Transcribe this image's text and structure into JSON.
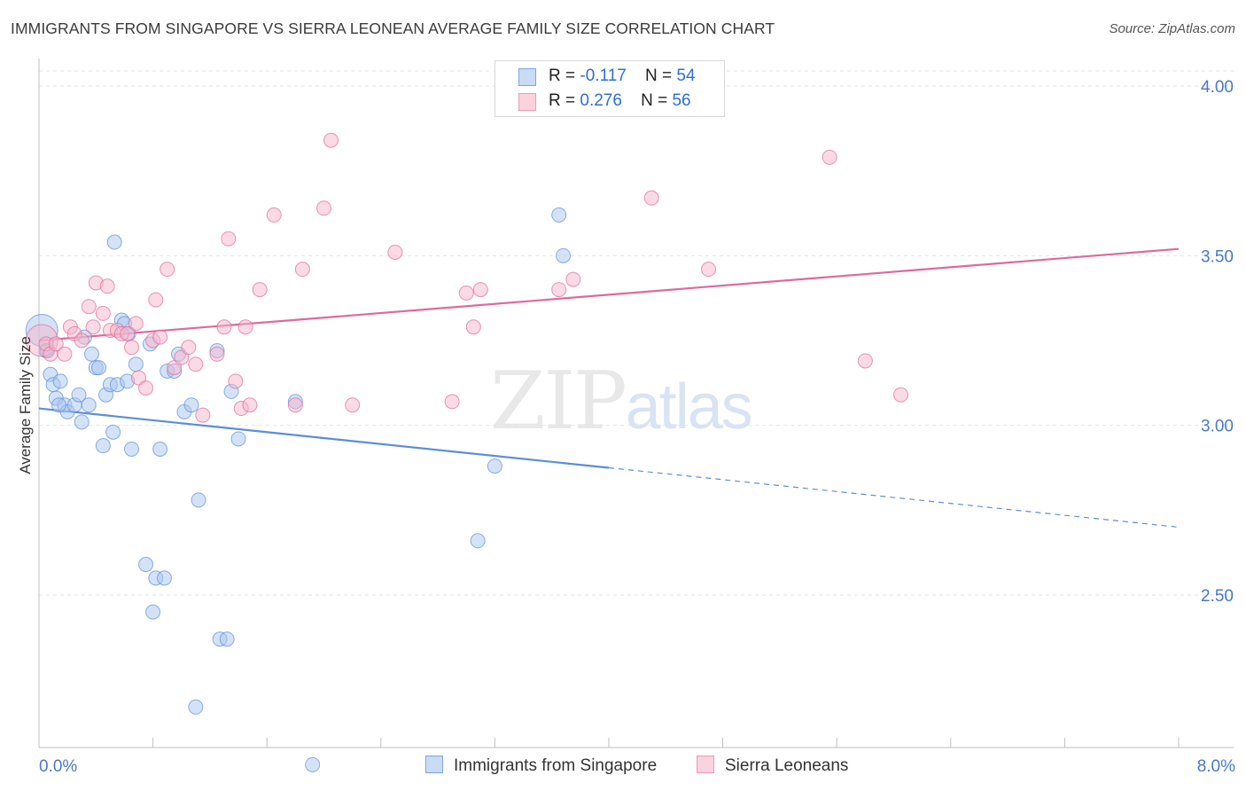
{
  "title": "IMMIGRANTS FROM SINGAPORE VS SIERRA LEONEAN AVERAGE FAMILY SIZE CORRELATION CHART",
  "source": "Source: ZipAtlas.com",
  "watermark": {
    "zip": "ZIP",
    "atlas": "atlas"
  },
  "legend": {
    "rows": [
      {
        "r_label": "R =",
        "r_value": "-0.117",
        "n_label": "N =",
        "n_value": "54",
        "color": "#a9c6ef"
      },
      {
        "r_label": "R =",
        "r_value": "0.276",
        "n_label": "N =",
        "n_value": "56",
        "color": "#f6b5c9"
      }
    ]
  },
  "bottom_legend": [
    {
      "label": "Immigrants from Singapore",
      "color": "#a9c6ef"
    },
    {
      "label": "Sierra Leoneans",
      "color": "#f6b5c9"
    }
  ],
  "chart_data": {
    "type": "scatter",
    "title": "IMMIGRANTS FROM SINGAPORE VS SIERRA LEONEAN AVERAGE FAMILY SIZE CORRELATION CHART",
    "ylabel": "Average Family Size",
    "xlabel": "",
    "xlim": [
      0,
      8
    ],
    "ylim": [
      2.0,
      4.1
    ],
    "x_ticks": [
      "0.0%",
      "8.0%"
    ],
    "y_ticks": [
      2.5,
      3.0,
      3.5,
      4.0
    ],
    "y_tick_labels": [
      "2.50",
      "3.00",
      "3.50",
      "4.00"
    ],
    "grid": "horizontal dashed",
    "series": [
      {
        "name": "Immigrants from Singapore",
        "color": "#5b8ed8",
        "fill": "#a9c6ef",
        "points": [
          [
            0.02,
            3.28
          ],
          [
            0.05,
            3.22
          ],
          [
            0.08,
            3.15
          ],
          [
            0.1,
            3.12
          ],
          [
            0.12,
            3.08
          ],
          [
            0.15,
            3.13
          ],
          [
            0.18,
            3.06
          ],
          [
            0.2,
            3.04
          ],
          [
            0.25,
            3.06
          ],
          [
            0.28,
            3.09
          ],
          [
            0.3,
            3.01
          ],
          [
            0.32,
            3.26
          ],
          [
            0.35,
            3.06
          ],
          [
            0.37,
            3.21
          ],
          [
            0.4,
            3.17
          ],
          [
            0.42,
            3.17
          ],
          [
            0.45,
            2.94
          ],
          [
            0.47,
            3.09
          ],
          [
            0.5,
            3.12
          ],
          [
            0.52,
            2.98
          ],
          [
            0.53,
            3.54
          ],
          [
            0.55,
            3.12
          ],
          [
            0.58,
            3.31
          ],
          [
            0.6,
            3.3
          ],
          [
            0.62,
            3.13
          ],
          [
            0.63,
            3.27
          ],
          [
            0.65,
            2.93
          ],
          [
            0.68,
            3.18
          ],
          [
            0.75,
            2.59
          ],
          [
            0.78,
            3.24
          ],
          [
            0.8,
            2.45
          ],
          [
            0.82,
            2.55
          ],
          [
            0.85,
            2.93
          ],
          [
            0.88,
            2.55
          ],
          [
            0.9,
            3.16
          ],
          [
            0.95,
            3.16
          ],
          [
            0.98,
            3.21
          ],
          [
            1.02,
            3.04
          ],
          [
            1.07,
            3.06
          ],
          [
            1.1,
            2.17
          ],
          [
            1.12,
            2.78
          ],
          [
            1.25,
            3.22
          ],
          [
            1.27,
            2.37
          ],
          [
            1.32,
            2.37
          ],
          [
            1.35,
            3.1
          ],
          [
            1.4,
            2.96
          ],
          [
            1.8,
            3.07
          ],
          [
            1.92,
            2.0
          ],
          [
            3.2,
            2.88
          ],
          [
            3.08,
            2.66
          ],
          [
            3.65,
            3.62
          ],
          [
            3.68,
            3.5
          ],
          [
            0.06,
            3.22
          ],
          [
            0.14,
            3.06
          ]
        ],
        "trend": {
          "x": [
            0,
            4.0,
            8.0
          ],
          "y": [
            3.05,
            2.875,
            2.7
          ],
          "solid_until": 4.0
        }
      },
      {
        "name": "Sierra Leoneans",
        "color": "#e0699a",
        "fill": "#f6b5c9",
        "points": [
          [
            0.02,
            3.25
          ],
          [
            0.05,
            3.24
          ],
          [
            0.08,
            3.21
          ],
          [
            0.12,
            3.24
          ],
          [
            0.18,
            3.21
          ],
          [
            0.22,
            3.29
          ],
          [
            0.25,
            3.27
          ],
          [
            0.3,
            3.25
          ],
          [
            0.35,
            3.35
          ],
          [
            0.38,
            3.29
          ],
          [
            0.4,
            3.42
          ],
          [
            0.45,
            3.33
          ],
          [
            0.48,
            3.41
          ],
          [
            0.5,
            3.28
          ],
          [
            0.55,
            3.28
          ],
          [
            0.58,
            3.27
          ],
          [
            0.62,
            3.27
          ],
          [
            0.65,
            3.23
          ],
          [
            0.68,
            3.3
          ],
          [
            0.7,
            3.14
          ],
          [
            0.75,
            3.11
          ],
          [
            0.8,
            3.25
          ],
          [
            0.82,
            3.37
          ],
          [
            0.85,
            3.26
          ],
          [
            0.9,
            3.46
          ],
          [
            0.95,
            3.17
          ],
          [
            1.0,
            3.2
          ],
          [
            1.05,
            3.23
          ],
          [
            1.1,
            3.18
          ],
          [
            1.15,
            3.03
          ],
          [
            1.25,
            3.21
          ],
          [
            1.3,
            3.29
          ],
          [
            1.33,
            3.55
          ],
          [
            1.38,
            3.13
          ],
          [
            1.42,
            3.05
          ],
          [
            1.45,
            3.29
          ],
          [
            1.48,
            3.06
          ],
          [
            1.55,
            3.4
          ],
          [
            1.65,
            3.62
          ],
          [
            1.8,
            3.06
          ],
          [
            1.85,
            3.46
          ],
          [
            2.0,
            3.64
          ],
          [
            2.05,
            3.84
          ],
          [
            2.2,
            3.06
          ],
          [
            2.5,
            3.51
          ],
          [
            2.9,
            3.07
          ],
          [
            3.0,
            3.39
          ],
          [
            3.05,
            3.29
          ],
          [
            3.1,
            3.4
          ],
          [
            3.65,
            3.4
          ],
          [
            3.75,
            3.43
          ],
          [
            4.3,
            3.67
          ],
          [
            4.7,
            3.46
          ],
          [
            5.55,
            3.79
          ],
          [
            5.8,
            3.19
          ],
          [
            6.05,
            3.09
          ]
        ],
        "trend": {
          "x": [
            0,
            8.0
          ],
          "y": [
            3.25,
            3.52
          ],
          "solid_until": 8.0
        }
      }
    ]
  }
}
